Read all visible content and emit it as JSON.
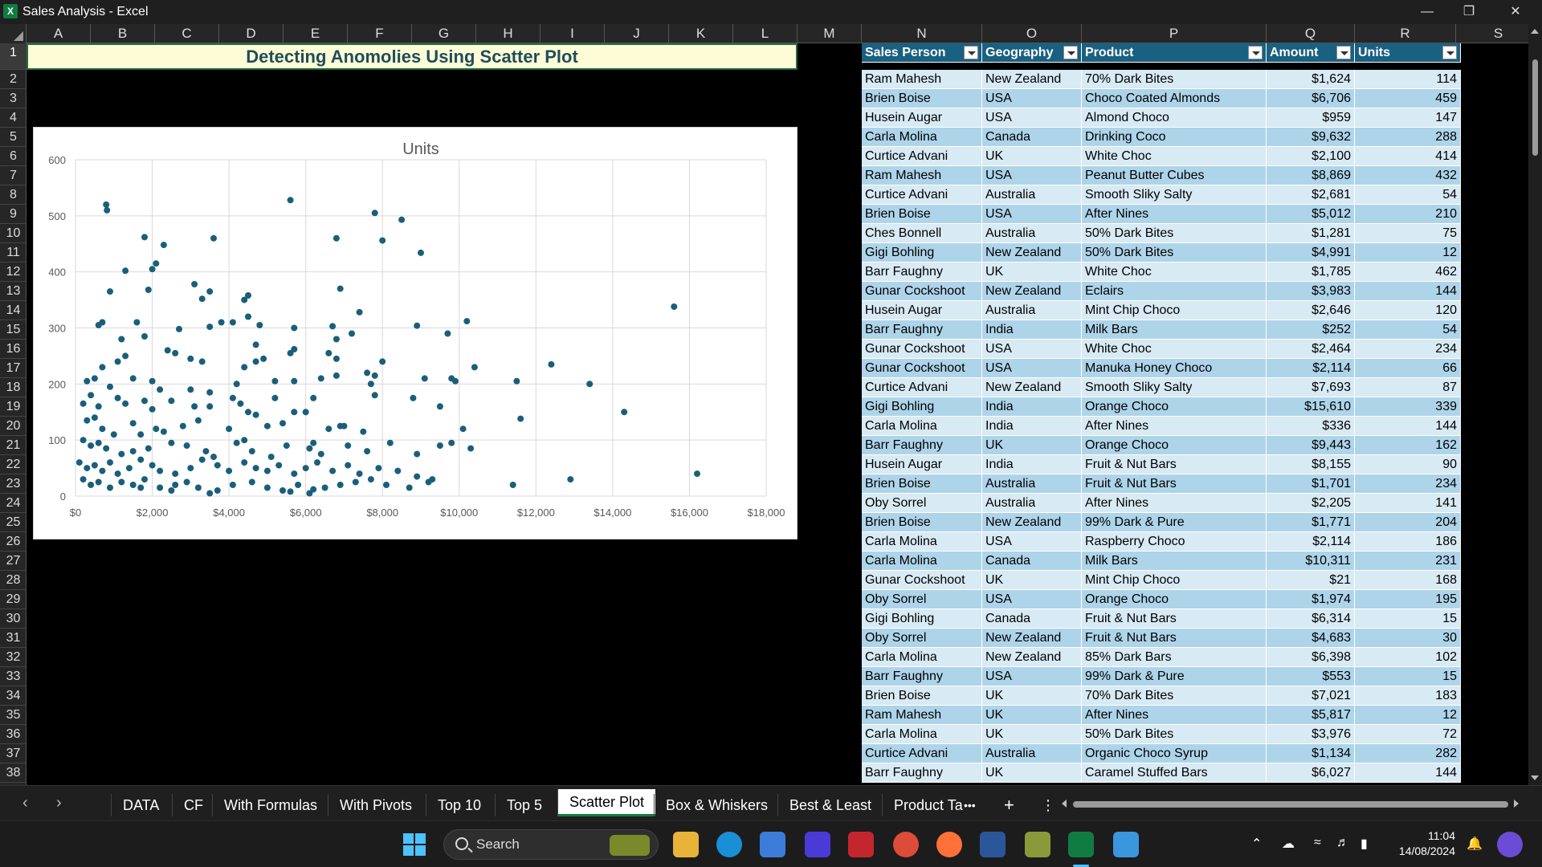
{
  "window": {
    "title": "Sales Analysis - Excel",
    "app_icon": "X"
  },
  "columns": [
    "A",
    "B",
    "C",
    "D",
    "E",
    "F",
    "G",
    "H",
    "I",
    "J",
    "K",
    "L",
    "M",
    "N",
    "O",
    "P",
    "Q",
    "R",
    "S"
  ],
  "rows": [
    "1",
    "2",
    "3",
    "4",
    "5",
    "6",
    "7",
    "8",
    "9",
    "10",
    "11",
    "12",
    "13",
    "14",
    "15",
    "16",
    "17",
    "18",
    "19",
    "20",
    "21",
    "22",
    "23",
    "24",
    "25",
    "26",
    "27",
    "28",
    "29",
    "30",
    "31",
    "32",
    "33",
    "34",
    "35",
    "36",
    "37",
    "38"
  ],
  "banner": "Detecting Anomolies Using Scatter Plot",
  "chart_data": {
    "type": "scatter",
    "title": "Units",
    "xlabel": "",
    "ylabel": "",
    "xlim": [
      0,
      18000
    ],
    "ylim": [
      0,
      600
    ],
    "x_ticks": [
      "$0",
      "$2,000",
      "$4,000",
      "$6,000",
      "$8,000",
      "$10,000",
      "$12,000",
      "$14,000",
      "$16,000",
      "$18,000"
    ],
    "y_ticks": [
      "0",
      "100",
      "200",
      "300",
      "400",
      "500",
      "600"
    ],
    "grid": true,
    "color": "#1a5f7a",
    "points": [
      [
        800,
        520
      ],
      [
        820,
        510
      ],
      [
        1800,
        462
      ],
      [
        2300,
        448
      ],
      [
        3600,
        460
      ],
      [
        5600,
        528
      ],
      [
        7800,
        505
      ],
      [
        8500,
        493
      ],
      [
        6800,
        460
      ],
      [
        8000,
        456
      ],
      [
        9000,
        434
      ],
      [
        1300,
        402
      ],
      [
        2000,
        405
      ],
      [
        2100,
        415
      ],
      [
        1900,
        368
      ],
      [
        900,
        365
      ],
      [
        3100,
        378
      ],
      [
        3300,
        352
      ],
      [
        3500,
        365
      ],
      [
        4400,
        350
      ],
      [
        4500,
        358
      ],
      [
        6900,
        370
      ],
      [
        7400,
        328
      ],
      [
        10200,
        312
      ],
      [
        15600,
        338
      ],
      [
        600,
        305
      ],
      [
        700,
        310
      ],
      [
        1600,
        310
      ],
      [
        2700,
        298
      ],
      [
        3800,
        310
      ],
      [
        4100,
        310
      ],
      [
        4500,
        320
      ],
      [
        4800,
        305
      ],
      [
        5700,
        300
      ],
      [
        6700,
        303
      ],
      [
        8900,
        304
      ],
      [
        9700,
        290
      ],
      [
        1200,
        280
      ],
      [
        1800,
        285
      ],
      [
        3500,
        302
      ],
      [
        2400,
        260
      ],
      [
        2600,
        255
      ],
      [
        4700,
        270
      ],
      [
        5600,
        255
      ],
      [
        5700,
        262
      ],
      [
        6800,
        280
      ],
      [
        7200,
        290
      ],
      [
        1100,
        240
      ],
      [
        1300,
        250
      ],
      [
        3000,
        245
      ],
      [
        3300,
        240
      ],
      [
        4400,
        230
      ],
      [
        4700,
        240
      ],
      [
        4900,
        245
      ],
      [
        6600,
        255
      ],
      [
        6800,
        245
      ],
      [
        7600,
        220
      ],
      [
        7800,
        215
      ],
      [
        8000,
        240
      ],
      [
        10400,
        230
      ],
      [
        12400,
        235
      ],
      [
        300,
        205
      ],
      [
        500,
        210
      ],
      [
        700,
        230
      ],
      [
        900,
        195
      ],
      [
        1500,
        210
      ],
      [
        2000,
        205
      ],
      [
        2200,
        190
      ],
      [
        3000,
        190
      ],
      [
        3500,
        185
      ],
      [
        4200,
        200
      ],
      [
        5200,
        205
      ],
      [
        5700,
        205
      ],
      [
        6400,
        210
      ],
      [
        6800,
        215
      ],
      [
        7700,
        200
      ],
      [
        9100,
        210
      ],
      [
        9800,
        210
      ],
      [
        9900,
        205
      ],
      [
        11500,
        205
      ],
      [
        13400,
        200
      ],
      [
        200,
        165
      ],
      [
        400,
        180
      ],
      [
        600,
        160
      ],
      [
        1100,
        175
      ],
      [
        1300,
        165
      ],
      [
        1800,
        170
      ],
      [
        2000,
        155
      ],
      [
        2500,
        170
      ],
      [
        3100,
        160
      ],
      [
        3500,
        160
      ],
      [
        4100,
        175
      ],
      [
        4300,
        165
      ],
      [
        4500,
        150
      ],
      [
        4700,
        145
      ],
      [
        5200,
        175
      ],
      [
        5700,
        150
      ],
      [
        6000,
        150
      ],
      [
        6200,
        175
      ],
      [
        6900,
        125
      ],
      [
        7800,
        180
      ],
      [
        8800,
        175
      ],
      [
        9500,
        160
      ],
      [
        14300,
        150
      ],
      [
        300,
        135
      ],
      [
        500,
        140
      ],
      [
        700,
        120
      ],
      [
        1000,
        110
      ],
      [
        1500,
        130
      ],
      [
        1700,
        110
      ],
      [
        2100,
        120
      ],
      [
        2300,
        115
      ],
      [
        2800,
        125
      ],
      [
        3200,
        135
      ],
      [
        4000,
        120
      ],
      [
        4400,
        100
      ],
      [
        5000,
        125
      ],
      [
        5400,
        130
      ],
      [
        6200,
        95
      ],
      [
        6600,
        120
      ],
      [
        7000,
        125
      ],
      [
        7500,
        115
      ],
      [
        10100,
        120
      ],
      [
        11600,
        138
      ],
      [
        200,
        100
      ],
      [
        400,
        90
      ],
      [
        600,
        95
      ],
      [
        800,
        85
      ],
      [
        1200,
        75
      ],
      [
        1500,
        80
      ],
      [
        1900,
        85
      ],
      [
        2500,
        95
      ],
      [
        2900,
        90
      ],
      [
        3400,
        80
      ],
      [
        3600,
        70
      ],
      [
        4200,
        95
      ],
      [
        4600,
        80
      ],
      [
        5100,
        70
      ],
      [
        5500,
        90
      ],
      [
        6100,
        85
      ],
      [
        6400,
        75
      ],
      [
        7100,
        90
      ],
      [
        7600,
        80
      ],
      [
        8200,
        95
      ],
      [
        8900,
        75
      ],
      [
        9500,
        90
      ],
      [
        9800,
        95
      ],
      [
        10300,
        85
      ],
      [
        100,
        60
      ],
      [
        300,
        50
      ],
      [
        500,
        55
      ],
      [
        700,
        45
      ],
      [
        900,
        60
      ],
      [
        1100,
        40
      ],
      [
        1400,
        50
      ],
      [
        1700,
        65
      ],
      [
        2000,
        55
      ],
      [
        2200,
        45
      ],
      [
        2600,
        40
      ],
      [
        3000,
        50
      ],
      [
        3300,
        65
      ],
      [
        3700,
        55
      ],
      [
        4000,
        45
      ],
      [
        4400,
        60
      ],
      [
        4700,
        50
      ],
      [
        5000,
        45
      ],
      [
        5300,
        55
      ],
      [
        5700,
        40
      ],
      [
        6000,
        50
      ],
      [
        6300,
        60
      ],
      [
        6700,
        45
      ],
      [
        7100,
        55
      ],
      [
        7400,
        40
      ],
      [
        7900,
        50
      ],
      [
        8400,
        45
      ],
      [
        8900,
        35
      ],
      [
        9300,
        30
      ],
      [
        200,
        30
      ],
      [
        400,
        20
      ],
      [
        600,
        25
      ],
      [
        900,
        15
      ],
      [
        1200,
        25
      ],
      [
        1500,
        20
      ],
      [
        1800,
        30
      ],
      [
        2200,
        15
      ],
      [
        2600,
        20
      ],
      [
        2900,
        25
      ],
      [
        3200,
        15
      ],
      [
        3700,
        10
      ],
      [
        4100,
        20
      ],
      [
        4600,
        25
      ],
      [
        5000,
        15
      ],
      [
        5400,
        10
      ],
      [
        5800,
        20
      ],
      [
        6100,
        5
      ],
      [
        6500,
        15
      ],
      [
        6900,
        20
      ],
      [
        7300,
        25
      ],
      [
        7700,
        30
      ],
      [
        8100,
        20
      ],
      [
        8700,
        15
      ],
      [
        9200,
        25
      ],
      [
        11400,
        20
      ],
      [
        12900,
        30
      ],
      [
        16200,
        40
      ],
      [
        2500,
        10
      ],
      [
        3500,
        5
      ],
      [
        1700,
        15
      ],
      [
        5600,
        8
      ],
      [
        6200,
        12
      ]
    ]
  },
  "table": {
    "headers": [
      "Sales Person",
      "Geography",
      "Product",
      "Amount",
      "Units"
    ],
    "rows": [
      [
        "Ram Mahesh",
        "New Zealand",
        "70% Dark Bites",
        "$1,624",
        "114"
      ],
      [
        "Brien Boise",
        "USA",
        "Choco Coated Almonds",
        "$6,706",
        "459"
      ],
      [
        "Husein Augar",
        "USA",
        "Almond Choco",
        "$959",
        "147"
      ],
      [
        "Carla Molina",
        "Canada",
        "Drinking Coco",
        "$9,632",
        "288"
      ],
      [
        "Curtice Advani",
        "UK",
        "White Choc",
        "$2,100",
        "414"
      ],
      [
        "Ram Mahesh",
        "USA",
        "Peanut Butter Cubes",
        "$8,869",
        "432"
      ],
      [
        "Curtice Advani",
        "Australia",
        "Smooth Sliky Salty",
        "$2,681",
        "54"
      ],
      [
        "Brien Boise",
        "USA",
        "After Nines",
        "$5,012",
        "210"
      ],
      [
        "Ches Bonnell",
        "Australia",
        "50% Dark Bites",
        "$1,281",
        "75"
      ],
      [
        "Gigi Bohling",
        "New Zealand",
        "50% Dark Bites",
        "$4,991",
        "12"
      ],
      [
        "Barr Faughny",
        "UK",
        "White Choc",
        "$1,785",
        "462"
      ],
      [
        "Gunar Cockshoot",
        "New Zealand",
        "Eclairs",
        "$3,983",
        "144"
      ],
      [
        "Husein Augar",
        "Australia",
        "Mint Chip Choco",
        "$2,646",
        "120"
      ],
      [
        "Barr Faughny",
        "India",
        "Milk Bars",
        "$252",
        "54"
      ],
      [
        "Gunar Cockshoot",
        "USA",
        "White Choc",
        "$2,464",
        "234"
      ],
      [
        "Gunar Cockshoot",
        "USA",
        "Manuka Honey Choco",
        "$2,114",
        "66"
      ],
      [
        "Curtice Advani",
        "New Zealand",
        "Smooth Sliky Salty",
        "$7,693",
        "87"
      ],
      [
        "Gigi Bohling",
        "India",
        "Orange Choco",
        "$15,610",
        "339"
      ],
      [
        "Carla Molina",
        "India",
        "After Nines",
        "$336",
        "144"
      ],
      [
        "Barr Faughny",
        "UK",
        "Orange Choco",
        "$9,443",
        "162"
      ],
      [
        "Husein Augar",
        "India",
        "Fruit & Nut Bars",
        "$8,155",
        "90"
      ],
      [
        "Brien Boise",
        "Australia",
        "Fruit & Nut Bars",
        "$1,701",
        "234"
      ],
      [
        "Oby Sorrel",
        "Australia",
        "After Nines",
        "$2,205",
        "141"
      ],
      [
        "Brien Boise",
        "New Zealand",
        "99% Dark & Pure",
        "$1,771",
        "204"
      ],
      [
        "Carla Molina",
        "USA",
        "Raspberry Choco",
        "$2,114",
        "186"
      ],
      [
        "Carla Molina",
        "Canada",
        "Milk Bars",
        "$10,311",
        "231"
      ],
      [
        "Gunar Cockshoot",
        "UK",
        "Mint Chip Choco",
        "$21",
        "168"
      ],
      [
        "Oby Sorrel",
        "USA",
        "Orange Choco",
        "$1,974",
        "195"
      ],
      [
        "Gigi Bohling",
        "Canada",
        "Fruit & Nut Bars",
        "$6,314",
        "15"
      ],
      [
        "Oby Sorrel",
        "New Zealand",
        "Fruit & Nut Bars",
        "$4,683",
        "30"
      ],
      [
        "Carla Molina",
        "New Zealand",
        "85% Dark Bars",
        "$6,398",
        "102"
      ],
      [
        "Barr Faughny",
        "USA",
        "99% Dark & Pure",
        "$553",
        "15"
      ],
      [
        "Brien Boise",
        "UK",
        "70% Dark Bites",
        "$7,021",
        "183"
      ],
      [
        "Ram Mahesh",
        "UK",
        "After Nines",
        "$5,817",
        "12"
      ],
      [
        "Carla Molina",
        "UK",
        "50% Dark Bites",
        "$3,976",
        "72"
      ],
      [
        "Curtice Advani",
        "Australia",
        "Organic Choco Syrup",
        "$1,134",
        "282"
      ],
      [
        "Barr Faughny",
        "UK",
        "Caramel Stuffed Bars",
        "$6,027",
        "144"
      ]
    ]
  },
  "sheet_tabs": [
    "DATA",
    "CF",
    "With Formulas",
    "With Pivots",
    "Top 10",
    "Top 5",
    "Scatter Plot",
    "Box & Whiskers",
    "Best & Least",
    "Product Ta"
  ],
  "active_tab": "Scatter Plot",
  "tab_more": "•••",
  "tab_add": "+",
  "tab_options": "⋮",
  "taskbar": {
    "search_placeholder": "Search",
    "time": "11:04",
    "date": "14/08/2024"
  }
}
